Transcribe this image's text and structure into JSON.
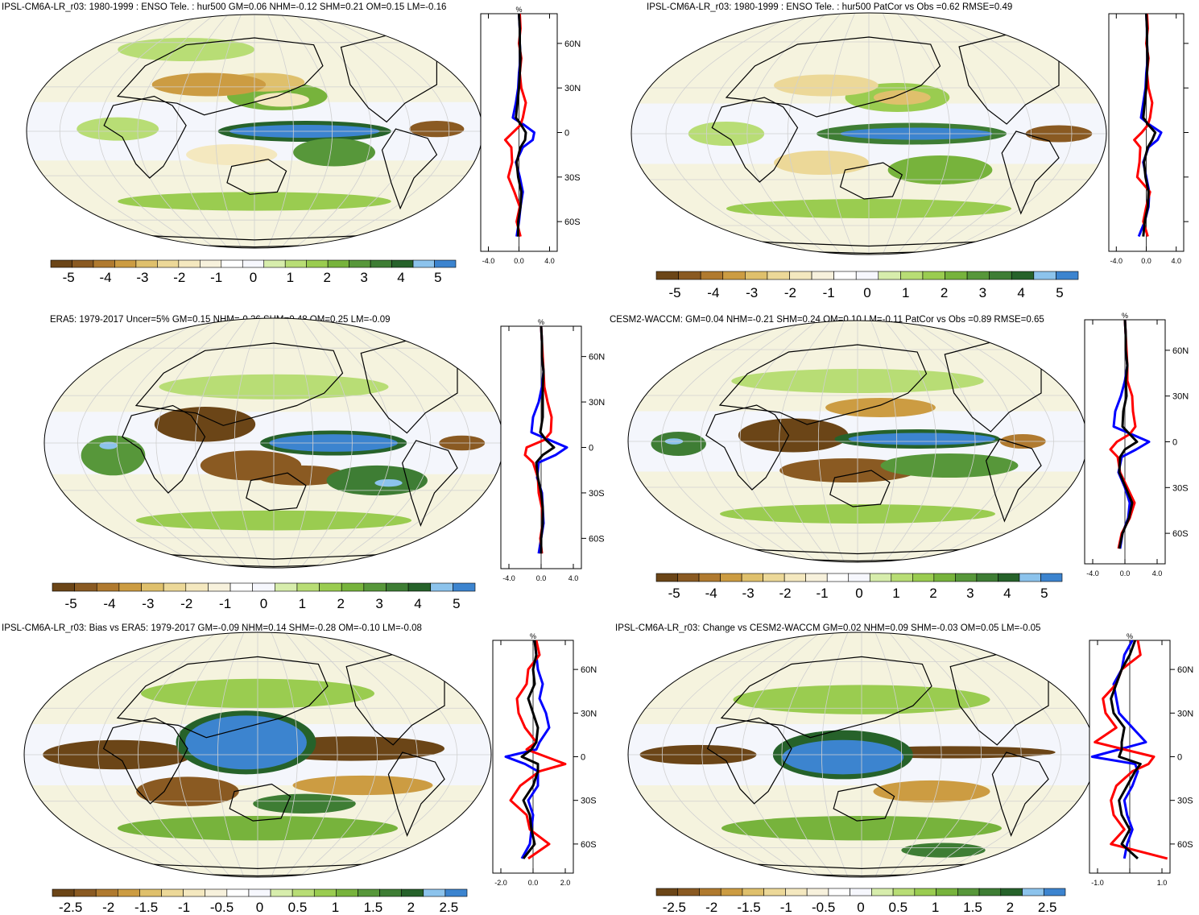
{
  "palette": [
    "#6b4517",
    "#8a5a22",
    "#b07a2f",
    "#cc9c42",
    "#dfc06c",
    "#ecd898",
    "#f4e8bf",
    "#f7f1dc",
    "#ffffff",
    "#f6f7fd",
    "#d7edac",
    "#b8dd75",
    "#9acc50",
    "#77b33c",
    "#57973a",
    "#3e7d34",
    "#26622a",
    "#8cc3ec",
    "#3c84cf"
  ],
  "colors": {
    "obs_line": "#0000ff",
    "model_line": "#ff0000",
    "mean_line": "#000000",
    "land_outline": "#000000",
    "graticule": "#d0d0d0"
  },
  "chart_data": [
    {
      "type": "heatmap",
      "map": "robinson-projection-map",
      "title": "IPSL-CM6A-LR_r03: 1980-1999 : ENSO Tele. : hur500 GM=0.06 NHM=-0.12 SHM=0.21 OM=0.15 LM=-0.16",
      "colorbar_ticks": [
        "-5",
        "-4",
        "-3",
        "-2",
        "-1",
        "0",
        "1",
        "2",
        "3",
        "4",
        "5"
      ],
      "zonal": {
        "unit": "%",
        "x_ticks": [
          "-4.0",
          "0.0",
          "4.0"
        ],
        "xlim": [
          -5,
          5
        ],
        "lat_ticks": [
          "60N",
          "30N",
          "0",
          "30S",
          "60S"
        ],
        "ylim": [
          -80,
          80
        ],
        "lat": [
          -70,
          -60,
          -50,
          -40,
          -30,
          -20,
          -10,
          -5,
          0,
          5,
          10,
          20,
          30,
          40,
          50,
          60,
          70,
          80
        ],
        "series": [
          {
            "name": "",
            "color": "#0000ff",
            "values": [
              -0.3,
              0.0,
              0.2,
              0.5,
              0.1,
              -0.4,
              0.5,
              1.8,
              2.0,
              0.7,
              -0.8,
              -0.4,
              -0.1,
              0.0,
              0.2,
              0.1,
              0.1,
              0.0
            ]
          },
          {
            "name": "",
            "color": "#ff0000",
            "values": [
              0.2,
              -0.3,
              0.1,
              -0.6,
              -1.4,
              -0.9,
              -1.0,
              -1.8,
              -0.8,
              0.2,
              0.5,
              0.9,
              0.3,
              0.1,
              0.3,
              0.0,
              0.2,
              0.1
            ]
          },
          {
            "name": "",
            "color": "#000000",
            "values": [
              -0.1,
              -0.1,
              0.2,
              0.3,
              -0.1,
              -0.3,
              0.2,
              0.8,
              0.9,
              0.3,
              -0.4,
              -0.2,
              0.0,
              0.1,
              0.2,
              0.1,
              0.1,
              0.0
            ]
          }
        ]
      }
    },
    {
      "type": "heatmap",
      "map": "robinson-projection-map",
      "title": "IPSL-CM6A-LR_r03: 1980-1999 : ENSO Tele. : hur500 PatCor vs Obs =0.62 RMSE=0.49",
      "colorbar_ticks": [
        "-5",
        "-4",
        "-3",
        "-2",
        "-1",
        "0",
        "1",
        "2",
        "3",
        "4",
        "5"
      ],
      "zonal": {
        "unit": "",
        "x_ticks": [
          "-4.0",
          "0.0",
          "4.0"
        ],
        "xlim": [
          -5,
          5
        ],
        "lat_ticks": [
          "",
          "",
          "",
          "",
          ""
        ],
        "ylim": [
          -80,
          80
        ],
        "lat": [
          -70,
          -60,
          -50,
          -40,
          -30,
          -20,
          -10,
          -5,
          0,
          5,
          10,
          20,
          30,
          40,
          50,
          60,
          70,
          80
        ],
        "series": [
          {
            "name": "",
            "color": "#0000ff",
            "values": [
              -1.0,
              -0.2,
              0.3,
              0.4,
              0.0,
              -0.4,
              0.3,
              1.5,
              2.0,
              0.5,
              -0.7,
              -0.4,
              -0.1,
              0.0,
              0.2,
              0.1,
              0.1,
              0.0
            ]
          },
          {
            "name": "",
            "color": "#ff0000",
            "values": [
              0.2,
              -0.4,
              0.0,
              0.5,
              -1.2,
              -0.9,
              -0.8,
              -1.6,
              -0.6,
              0.2,
              0.5,
              0.8,
              0.3,
              0.1,
              0.3,
              0.0,
              0.2,
              0.1
            ]
          },
          {
            "name": "",
            "color": "#000000",
            "values": [
              -0.4,
              -0.2,
              0.2,
              0.3,
              -0.1,
              -0.3,
              0.2,
              0.8,
              1.2,
              0.3,
              -0.4,
              -0.2,
              0.0,
              0.1,
              0.2,
              0.1,
              0.1,
              0.0
            ]
          }
        ]
      }
    },
    {
      "type": "heatmap",
      "map": "robinson-projection-map",
      "title": "ERA5: 1979-2017 Uncer=5% GM=0.15 NHM=-0.26 SHM=0.48 OM=0.25 LM=-0.09",
      "colorbar_ticks": [
        "-5",
        "-4",
        "-3",
        "-2",
        "-1",
        "0",
        "1",
        "2",
        "3",
        "4",
        "5"
      ],
      "zonal": {
        "unit": "%",
        "x_ticks": [
          "-4.0",
          "0.0",
          "4.0"
        ],
        "xlim": [
          -5,
          5
        ],
        "lat_ticks": [
          "60N",
          "30N",
          "0",
          "30S",
          "60S"
        ],
        "ylim": [
          -80,
          80
        ],
        "lat": [
          -70,
          -60,
          -50,
          -40,
          -30,
          -20,
          -10,
          -5,
          0,
          5,
          10,
          20,
          30,
          40,
          50,
          60,
          70,
          80
        ],
        "series": [
          {
            "name": "",
            "color": "#0000ff",
            "values": [
              -0.3,
              0.0,
              0.3,
              0.2,
              0.1,
              -0.5,
              -0.3,
              1.8,
              3.2,
              1.0,
              -1.2,
              -1.0,
              -0.3,
              0.1,
              0.3,
              0.1,
              0.1,
              0.0
            ]
          },
          {
            "name": "",
            "color": "#ff0000",
            "values": [
              0.1,
              -0.1,
              0.2,
              0.1,
              -0.3,
              -0.4,
              -1.0,
              -2.0,
              -1.8,
              0.4,
              1.2,
              1.3,
              0.8,
              0.4,
              0.3,
              0.2,
              0.1,
              0.0
            ]
          },
          {
            "name": "",
            "color": "#000000",
            "values": [
              0.0,
              0.0,
              0.2,
              0.2,
              0.0,
              -0.4,
              -0.6,
              0.2,
              1.6,
              0.6,
              -0.1,
              0.2,
              0.2,
              0.2,
              0.3,
              0.1,
              0.1,
              0.0
            ]
          }
        ]
      }
    },
    {
      "type": "heatmap",
      "map": "robinson-projection-map",
      "title": "CESM2-WACCM: GM=0.04 NHM=-0.21 SHM=0.24 OM=0.10 LM=-0.11 PatCor vs Obs =0.89 RMSE=0.65",
      "colorbar_ticks": [
        "-5",
        "-4",
        "-3",
        "-2",
        "-1",
        "0",
        "1",
        "2",
        "3",
        "4",
        "5"
      ],
      "zonal": {
        "unit": "%",
        "x_ticks": [
          "-4.0",
          "0.0",
          "4.0"
        ],
        "xlim": [
          -5,
          5
        ],
        "lat_ticks": [
          "60N",
          "30N",
          "0",
          "30S",
          "60S"
        ],
        "ylim": [
          -80,
          80
        ],
        "lat": [
          -70,
          -60,
          -50,
          -40,
          -30,
          -20,
          -10,
          -5,
          0,
          5,
          10,
          20,
          30,
          40,
          50,
          60,
          70,
          80
        ],
        "series": [
          {
            "name": "",
            "color": "#0000ff",
            "values": [
              -0.6,
              -0.3,
              0.4,
              0.6,
              0.0,
              -0.8,
              -0.4,
              1.4,
              3.0,
              0.8,
              -1.4,
              -1.2,
              -0.5,
              0.0,
              0.3,
              0.1,
              0.1,
              0.0
            ]
          },
          {
            "name": "",
            "color": "#ff0000",
            "values": [
              -0.8,
              -0.4,
              0.6,
              1.2,
              0.3,
              -0.6,
              -0.9,
              -1.8,
              -1.0,
              0.6,
              1.3,
              1.0,
              0.9,
              0.3,
              0.3,
              0.2,
              0.1,
              0.0
            ]
          },
          {
            "name": "",
            "color": "#000000",
            "values": [
              -0.7,
              -0.3,
              0.5,
              0.9,
              0.1,
              -0.7,
              -0.6,
              0.0,
              1.5,
              0.6,
              -0.3,
              -0.2,
              0.2,
              0.1,
              0.3,
              0.1,
              0.1,
              0.0
            ]
          }
        ]
      }
    },
    {
      "type": "heatmap",
      "map": "robinson-projection-map",
      "title": "IPSL-CM6A-LR_r03: Bias vs ERA5: 1979-2017 GM=-0.09 NHM=0.14 SHM=-0.28 OM=-0.10 LM=-0.08",
      "colorbar_ticks": [
        "-2.5",
        "-2",
        "-1.5",
        "-1",
        "-0.5",
        "0",
        "0.5",
        "1",
        "1.5",
        "2",
        "2.5"
      ],
      "zonal": {
        "unit": "%",
        "x_ticks": [
          "-2.0",
          "0.0",
          "2.0"
        ],
        "xlim": [
          -2.5,
          2.5
        ],
        "lat_ticks": [
          "60N",
          "30N",
          "0",
          "30S",
          "60S"
        ],
        "ylim": [
          -80,
          80
        ],
        "lat": [
          -70,
          -60,
          -50,
          -40,
          -30,
          -20,
          -10,
          -5,
          0,
          5,
          10,
          20,
          30,
          40,
          50,
          60,
          70,
          80
        ],
        "series": [
          {
            "name": "",
            "color": "#0000ff",
            "values": [
              -0.7,
              -0.2,
              -0.1,
              0.0,
              -0.3,
              0.3,
              0.3,
              -0.5,
              -1.7,
              0.2,
              0.4,
              1.0,
              0.8,
              0.4,
              0.6,
              0.3,
              0.2,
              0.1
            ]
          },
          {
            "name": "",
            "color": "#ff0000",
            "values": [
              -0.3,
              1.0,
              -0.2,
              -0.4,
              -1.4,
              -0.8,
              0.4,
              2.0,
              0.8,
              -0.4,
              0.2,
              -0.5,
              -0.9,
              -1.0,
              -0.4,
              -0.3,
              0.4,
              0.2
            ]
          },
          {
            "name": "",
            "color": "#000000",
            "values": [
              -0.6,
              0.1,
              -0.1,
              -0.2,
              -0.6,
              0.0,
              0.3,
              0.3,
              -0.7,
              -0.1,
              0.2,
              0.3,
              0.0,
              -0.3,
              0.1,
              0.0,
              0.2,
              0.1
            ]
          }
        ]
      }
    },
    {
      "type": "heatmap",
      "map": "robinson-projection-map",
      "title": "IPSL-CM6A-LR_r03: Change vs CESM2-WACCM GM=0.02 NHM=0.09 SHM=-0.03 OM=0.05 LM=-0.05",
      "colorbar_ticks": [
        "-2.5",
        "-2",
        "-1.5",
        "-1",
        "-0.5",
        "0",
        "0.5",
        "1",
        "1.5",
        "2",
        "2.5"
      ],
      "zonal": {
        "unit": "%",
        "x_ticks": [
          "-1.0",
          "",
          "1.0"
        ],
        "xlim": [
          -1.5,
          1.5
        ],
        "lat_ticks": [
          "60N",
          "30N",
          "0",
          "30S",
          "60S"
        ],
        "ylim": [
          -80,
          80
        ],
        "lat": [
          -70,
          -60,
          -50,
          -40,
          -30,
          -20,
          -10,
          -5,
          0,
          5,
          10,
          20,
          30,
          40,
          50,
          60,
          70,
          80
        ],
        "series": [
          {
            "name": "",
            "color": "#0000ff",
            "values": [
              -0.2,
              -0.1,
              0.1,
              -0.1,
              -0.2,
              0.1,
              0.3,
              0.2,
              -1.4,
              -0.4,
              0.6,
              0.1,
              -0.4,
              -0.5,
              -0.6,
              -0.3,
              -0.2,
              0.1
            ]
          },
          {
            "name": "",
            "color": "#ff0000",
            "values": [
              1.4,
              -0.7,
              -0.2,
              -0.6,
              -0.7,
              -0.5,
              0.1,
              0.7,
              0.9,
              -0.2,
              -1.3,
              -0.5,
              -0.9,
              -1.0,
              -0.5,
              -0.3,
              0.4,
              0.3
            ]
          },
          {
            "name": "",
            "color": "#000000",
            "values": [
              0.3,
              -0.3,
              0.0,
              -0.3,
              -0.4,
              -0.1,
              0.2,
              0.4,
              -0.4,
              -0.3,
              -0.3,
              -0.2,
              -0.6,
              -0.7,
              -0.5,
              -0.3,
              0.0,
              0.2
            ]
          }
        ]
      }
    }
  ]
}
